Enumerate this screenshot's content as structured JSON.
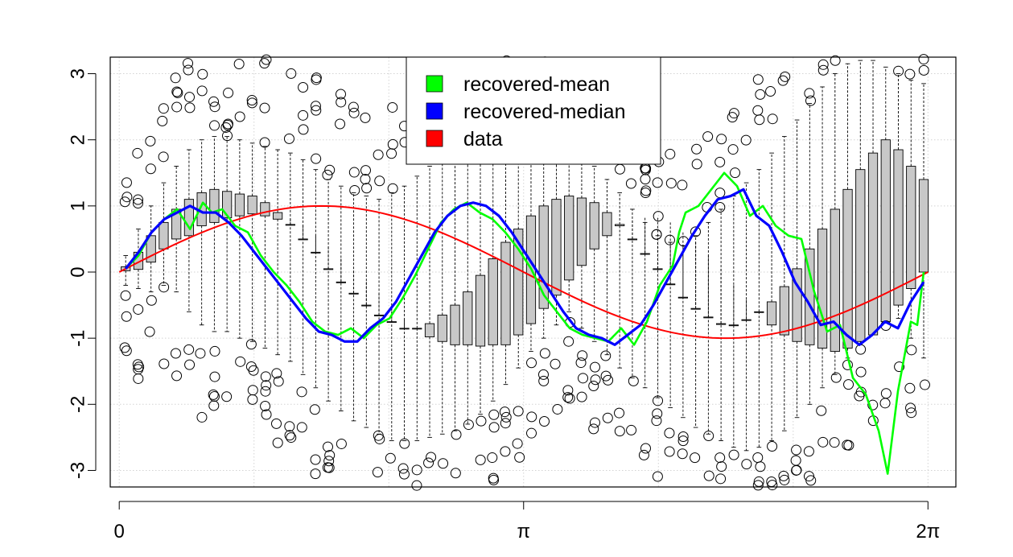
{
  "chart_data": {
    "type": "line",
    "title": "",
    "xlabel": "",
    "ylabel": "",
    "xlim": [
      -0.07,
      6.5
    ],
    "ylim": [
      -3.25,
      3.25
    ],
    "x_ticks": [
      {
        "value": 0,
        "label": "0"
      },
      {
        "value": 3.1416,
        "label": "π"
      },
      {
        "value": 6.2832,
        "label": "2π"
      }
    ],
    "y_ticks": [
      {
        "value": 3,
        "label": "3"
      },
      {
        "value": 2,
        "label": "2"
      },
      {
        "value": 1,
        "label": "1"
      },
      {
        "value": 0,
        "label": "0"
      },
      {
        "value": -1,
        "label": "-1"
      },
      {
        "value": -2,
        "label": "-2"
      },
      {
        "value": -3,
        "label": "-3"
      }
    ],
    "grid": true,
    "legend_position": "top-center",
    "legend": [
      {
        "label": "recovered-mean",
        "color": "#00ff00"
      },
      {
        "label": "recovered-median",
        "color": "#0000ff"
      },
      {
        "label": "data",
        "color": "#ff0000"
      }
    ],
    "boxes": {
      "count": 64,
      "x_start": 0.05,
      "x_end": 6.25,
      "q1": [
        0.02,
        0.04,
        0.15,
        0.35,
        0.5,
        0.55,
        0.7,
        0.75,
        0.82,
        0.85,
        0.88,
        0.85,
        0.8,
        0.8,
        0.7,
        0.55,
        0.38,
        0.2,
        0.02,
        -0.15,
        -0.32,
        -0.55,
        -0.72,
        -0.85,
        -0.98,
        -1.05,
        -1.1,
        -1.1,
        -1.12,
        -1.1,
        -1.1,
        -0.95,
        -0.78,
        -0.55,
        -0.35,
        -0.12,
        0.1,
        0.35,
        0.55,
        0.7,
        0.78,
        0.82,
        0.82,
        0.75,
        0.6,
        0.45,
        0.25,
        0.05,
        -0.2,
        -0.42,
        -0.6,
        -0.8,
        -0.95,
        -1.05,
        -1.1,
        -1.15,
        -1.2,
        -1.15,
        -1.05,
        -0.95,
        -0.75,
        -0.5,
        -0.25,
        0.0
      ],
      "q3": [
        0.08,
        0.3,
        0.55,
        0.75,
        0.95,
        1.1,
        1.2,
        1.25,
        1.22,
        1.18,
        1.15,
        1.05,
        0.9,
        0.72,
        0.5,
        0.3,
        0.05,
        -0.15,
        -0.32,
        -0.5,
        -0.65,
        -0.75,
        -0.85,
        -0.85,
        -0.78,
        -0.65,
        -0.5,
        -0.3,
        -0.05,
        0.2,
        0.45,
        0.65,
        0.85,
        1.0,
        1.1,
        1.15,
        1.12,
        1.05,
        0.9,
        0.72,
        0.5,
        0.28,
        0.05,
        -0.18,
        -0.38,
        -0.55,
        -0.68,
        -0.78,
        -0.8,
        -0.72,
        -0.6,
        -0.45,
        -0.22,
        0.05,
        0.35,
        0.65,
        0.95,
        1.25,
        1.55,
        1.8,
        2.0,
        1.85,
        1.6,
        1.4
      ],
      "whisker_lo": [
        -0.2,
        -0.25,
        -0.3,
        -0.2,
        -0.3,
        -0.6,
        -0.8,
        -0.9,
        -0.9,
        -1.0,
        -1.05,
        -1.15,
        -1.25,
        -1.35,
        -1.55,
        -1.75,
        -1.95,
        -2.1,
        -2.25,
        -2.35,
        -2.45,
        -2.55,
        -2.55,
        -2.55,
        -2.5,
        -2.45,
        -2.4,
        -2.3,
        -2.15,
        -1.95,
        -1.7,
        -1.45,
        -1.2,
        -1.0,
        -0.8,
        -0.6,
        -0.85,
        -1.05,
        -1.25,
        -1.45,
        -1.6,
        -1.75,
        -1.9,
        -2.05,
        -2.2,
        -2.35,
        -2.45,
        -2.55,
        -2.65,
        -2.7,
        -2.65,
        -2.55,
        -2.4,
        -2.2,
        -2.0,
        -1.75,
        -1.55,
        -1.3,
        -1.1,
        -0.9,
        -0.7,
        -0.7,
        -1.0,
        -1.3
      ],
      "whisker_hi": [
        0.25,
        0.65,
        1.0,
        1.35,
        1.6,
        1.85,
        2.0,
        2.05,
        2.05,
        2.0,
        1.95,
        1.9,
        1.85,
        1.8,
        1.7,
        1.55,
        1.4,
        1.3,
        1.2,
        1.15,
        1.1,
        1.2,
        1.3,
        1.45,
        1.6,
        1.75,
        1.9,
        2.0,
        2.1,
        2.2,
        2.25,
        2.3,
        2.3,
        2.2,
        2.05,
        1.9,
        1.8,
        1.6,
        1.4,
        1.2,
        0.95,
        0.75,
        0.55,
        0.45,
        0.4,
        0.55,
        0.75,
        0.95,
        1.15,
        1.35,
        1.55,
        1.8,
        2.05,
        2.3,
        2.55,
        2.8,
        3.0,
        3.15,
        3.2,
        3.2,
        3.1,
        3.0,
        2.9,
        2.85
      ]
    },
    "series": [
      {
        "name": "recovered-mean",
        "color": "#00ff00",
        "x": [
          0.05,
          0.15,
          0.25,
          0.35,
          0.45,
          0.55,
          0.65,
          0.72,
          0.8,
          0.9,
          1.0,
          1.1,
          1.2,
          1.3,
          1.4,
          1.5,
          1.6,
          1.7,
          1.8,
          1.9,
          2.0,
          2.1,
          2.2,
          2.3,
          2.4,
          2.5,
          2.6,
          2.7,
          2.8,
          2.9,
          3.0,
          3.1,
          3.2,
          3.3,
          3.4,
          3.5,
          3.6,
          3.7,
          3.8,
          3.9,
          4.0,
          4.1,
          4.2,
          4.3,
          4.35,
          4.4,
          4.5,
          4.6,
          4.7,
          4.8,
          4.9,
          5.0,
          5.1,
          5.2,
          5.3,
          5.4,
          5.5,
          5.6,
          5.65,
          5.7,
          5.8,
          5.9,
          5.97,
          6.05,
          6.15,
          6.2,
          6.25
        ],
        "y": [
          0.05,
          0.25,
          0.6,
          0.8,
          0.95,
          0.65,
          1.05,
          0.9,
          0.95,
          0.7,
          0.6,
          0.25,
          0.0,
          -0.2,
          -0.45,
          -0.75,
          -0.9,
          -0.95,
          -0.85,
          -1.0,
          -0.8,
          -0.7,
          -0.4,
          -0.05,
          0.35,
          0.75,
          0.95,
          1.05,
          0.9,
          0.8,
          0.6,
          0.35,
          0.05,
          -0.35,
          -0.6,
          -0.85,
          -0.95,
          -1.0,
          -1.05,
          -0.85,
          -1.1,
          -0.75,
          -0.2,
          0.1,
          0.6,
          0.9,
          1.0,
          1.25,
          1.5,
          1.3,
          0.85,
          1.0,
          0.7,
          0.55,
          0.5,
          -0.3,
          -0.9,
          -0.8,
          -1.2,
          -1.6,
          -1.85,
          -2.4,
          -3.05,
          -1.8,
          -0.75,
          -0.8,
          0.0
        ]
      },
      {
        "name": "recovered-median",
        "color": "#0000ff",
        "x": [
          0.05,
          0.15,
          0.25,
          0.35,
          0.45,
          0.55,
          0.65,
          0.75,
          0.85,
          0.95,
          1.05,
          1.15,
          1.25,
          1.35,
          1.45,
          1.55,
          1.65,
          1.75,
          1.85,
          1.95,
          2.05,
          2.15,
          2.25,
          2.35,
          2.45,
          2.55,
          2.65,
          2.75,
          2.85,
          2.95,
          3.05,
          3.15,
          3.25,
          3.35,
          3.45,
          3.55,
          3.65,
          3.75,
          3.85,
          3.95,
          4.05,
          4.15,
          4.25,
          4.35,
          4.45,
          4.55,
          4.65,
          4.75,
          4.85,
          4.95,
          5.05,
          5.15,
          5.25,
          5.35,
          5.45,
          5.55,
          5.65,
          5.75,
          5.85,
          5.95,
          6.05,
          6.15,
          6.25
        ],
        "y": [
          0.05,
          0.3,
          0.6,
          0.8,
          0.9,
          1.0,
          0.9,
          0.9,
          0.75,
          0.55,
          0.3,
          0.05,
          -0.2,
          -0.45,
          -0.7,
          -0.9,
          -0.95,
          -1.05,
          -1.05,
          -0.85,
          -0.7,
          -0.45,
          -0.1,
          0.25,
          0.6,
          0.85,
          1.0,
          1.05,
          1.0,
          0.85,
          0.6,
          0.3,
          0.0,
          -0.3,
          -0.6,
          -0.85,
          -0.95,
          -1.0,
          -1.1,
          -0.95,
          -0.8,
          -0.5,
          -0.15,
          0.2,
          0.55,
          0.85,
          1.1,
          1.15,
          1.25,
          0.85,
          0.7,
          0.3,
          -0.15,
          -0.45,
          -0.8,
          -0.75,
          -0.95,
          -1.1,
          -0.95,
          -0.75,
          -0.85,
          -0.45,
          -0.15
        ]
      },
      {
        "name": "data",
        "color": "#ff0000",
        "function": "sin",
        "x_range": [
          0,
          6.2832
        ]
      }
    ]
  }
}
